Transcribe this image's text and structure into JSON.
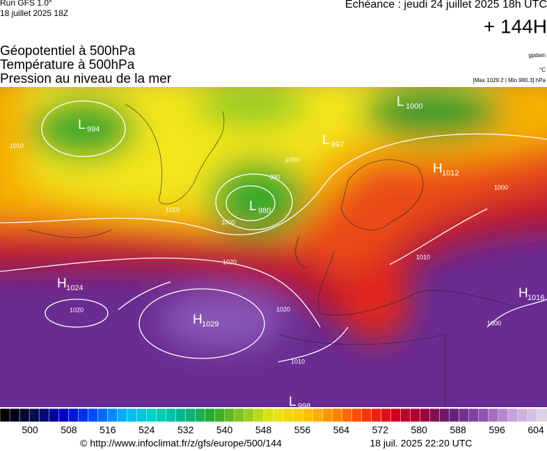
{
  "header": {
    "run": "Run GFS 1.0°",
    "run_date": "18 juillet 2025 18Z",
    "valid": "Echéance : jeudi 24 juillet 2025 18h UTC",
    "lead": "+ 144H"
  },
  "fields": {
    "line1": "Géopotentiel à 500hPa",
    "line2": "Température à 500hPa",
    "line3": "Pression au niveau de la mer",
    "unit1": "gpdam",
    "unit2": "°C",
    "range": "[Max 1029.2 | Min 980.3] hPa"
  },
  "centers": [
    {
      "letter": "L",
      "value": "994"
    },
    {
      "letter": "L",
      "value": "1000"
    },
    {
      "letter": "L",
      "value": "997"
    },
    {
      "letter": "L",
      "value": "980"
    },
    {
      "letter": "H",
      "value": "1012"
    },
    {
      "letter": "H",
      "value": "1024"
    },
    {
      "letter": "H",
      "value": "1029"
    },
    {
      "letter": "H",
      "value": "1016"
    },
    {
      "letter": "L",
      "value": "998"
    }
  ],
  "isobar_labels": [
    "990",
    "1000",
    "1010",
    "1000",
    "1020",
    "1020",
    "1020",
    "1010",
    "1000",
    "1010",
    "1010",
    "1000"
  ],
  "colorbar": {
    "labels": [
      "500",
      "508",
      "516",
      "524",
      "532",
      "540",
      "548",
      "556",
      "564",
      "572",
      "580",
      "588",
      "596",
      "604"
    ]
  },
  "footer": {
    "url": "© http://www.infoclimat.fr/z/gfs/europe/500/144",
    "generated": "18 juil. 2025 22:20 UTC"
  }
}
